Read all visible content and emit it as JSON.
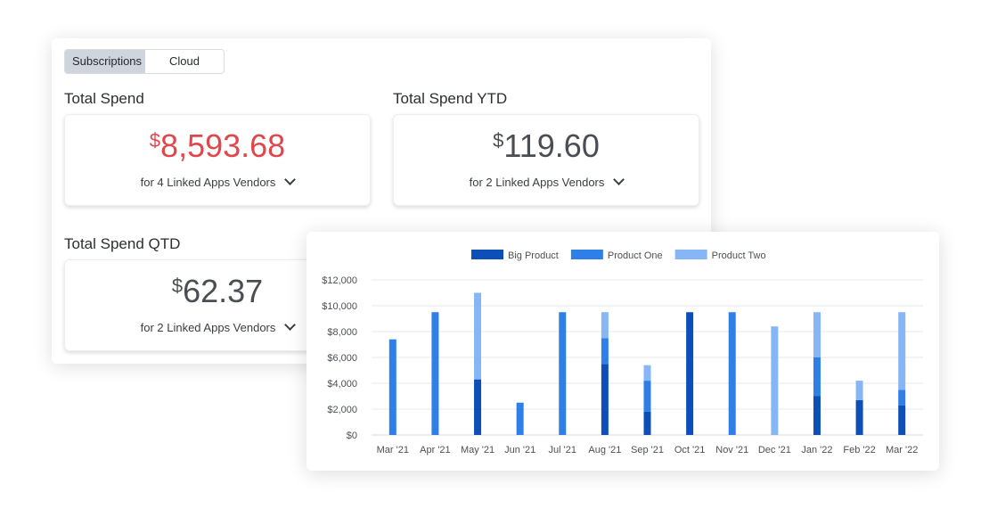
{
  "tabs": [
    {
      "label": "Subscriptions",
      "active": true
    },
    {
      "label": "Cloud",
      "active": false
    }
  ],
  "cards": [
    {
      "title": "Total Spend",
      "currency": "$",
      "amount": "8,593.68",
      "subtitle": "for 4 Linked Apps Vendors",
      "color": "#e0474c"
    },
    {
      "title": "Total Spend YTD",
      "currency": "$",
      "amount": "119.60",
      "subtitle": "for 2 Linked Apps Vendors",
      "color": "#4a4d52"
    },
    {
      "title": "Total Spend QTD",
      "currency": "$",
      "amount": "62.37",
      "subtitle": "for 2 Linked Apps Vendors",
      "color": "#4a4d52"
    }
  ],
  "chart_data": {
    "type": "bar",
    "stacked": true,
    "categories": [
      "Mar '21",
      "Apr '21",
      "May '21",
      "Jun '21",
      "Jul '21",
      "Aug '21",
      "Sep '21",
      "Oct '21",
      "Nov '21",
      "Dec '21",
      "Jan '22",
      "Feb '22",
      "Mar '22"
    ],
    "series": [
      {
        "name": "Big Product",
        "color": "#0d4fb8",
        "values": [
          0,
          0,
          4300,
          0,
          0,
          5500,
          1800,
          9500,
          0,
          0,
          3000,
          2700,
          2300
        ]
      },
      {
        "name": "Product One",
        "color": "#2e7fe8",
        "values": [
          7400,
          9500,
          0,
          2500,
          9500,
          2000,
          2400,
          0,
          9500,
          0,
          3000,
          0,
          1200
        ]
      },
      {
        "name": "Product Two",
        "color": "#86b6f5",
        "values": [
          0,
          0,
          6700,
          0,
          0,
          2000,
          1200,
          0,
          0,
          8400,
          3500,
          1500,
          6000
        ]
      }
    ],
    "yticks": [
      "$0",
      "$2,000",
      "$4,000",
      "$6,000",
      "$8,000",
      "$10,000",
      "$12,000"
    ],
    "ylim": [
      0,
      12000
    ],
    "legend": "top",
    "grid": true
  }
}
